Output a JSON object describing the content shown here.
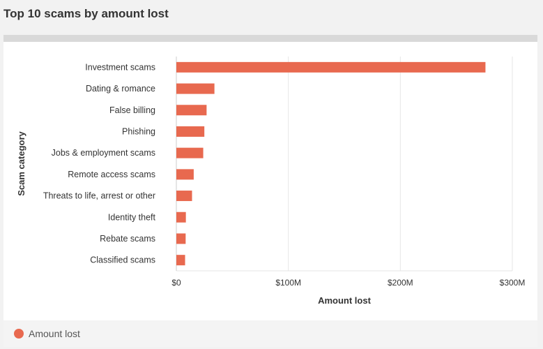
{
  "title": "Top 10 scams by amount lost",
  "colors": {
    "bar": "#e8694f",
    "grid": "#e6e6e6",
    "axis": "#cccccc",
    "text": "#333333"
  },
  "legend": {
    "label": "Amount lost"
  },
  "chart_data": {
    "type": "bar",
    "orientation": "horizontal",
    "title": "Top 10 scams by amount lost",
    "xlabel": "Amount lost",
    "ylabel": "Scam category",
    "categories": [
      "Investment scams",
      "Dating & romance",
      "False billing",
      "Phishing",
      "Jobs & employment scams",
      "Remote access scams",
      "Threats to life, arrest or other",
      "Identity theft",
      "Rebate scams",
      "Classified scams"
    ],
    "series": [
      {
        "name": "Amount lost",
        "values": [
          276,
          34,
          27,
          25,
          24,
          15.5,
          14,
          8.5,
          8.3,
          7.8
        ]
      }
    ],
    "units": "$M",
    "xlim": [
      0,
      300
    ],
    "xticks": [
      0,
      100,
      200,
      300
    ],
    "xtick_labels": [
      "$0",
      "$100M",
      "$200M",
      "$300M"
    ],
    "grid": true,
    "legend_position": "bottom-left"
  }
}
